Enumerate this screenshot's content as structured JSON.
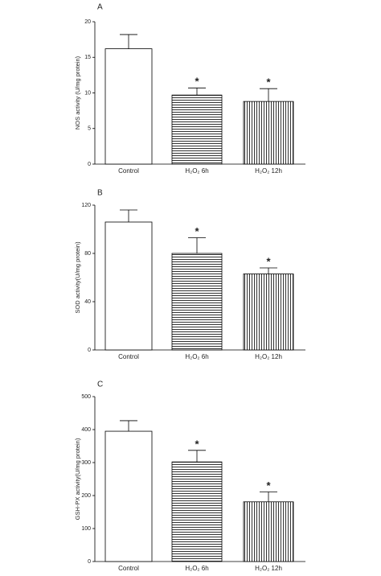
{
  "chart_data": [
    {
      "type": "bar",
      "panel_label": "A",
      "ylabel": "NOS activity (U/mg protein)",
      "categories": [
        "Control",
        "H₂O₂ 6h",
        "H₂O₂ 12h"
      ],
      "values": [
        16.2,
        9.7,
        8.8
      ],
      "errors": [
        2.0,
        1.0,
        1.8
      ],
      "significance": [
        null,
        "*",
        "*"
      ],
      "patterns": [
        "none",
        "horizontal",
        "vertical"
      ],
      "color": "#000000",
      "ylim": [
        0,
        20
      ],
      "yticks": [
        0,
        5,
        10,
        15,
        20
      ]
    },
    {
      "type": "bar",
      "panel_label": "B",
      "ylabel": "SOD activity(U/mg protein)",
      "categories": [
        "Control",
        "H₂O₂ 6h",
        "H₂O₂ 12h"
      ],
      "values": [
        106,
        80,
        63
      ],
      "errors": [
        10,
        13,
        5
      ],
      "significance": [
        null,
        "*",
        "*"
      ],
      "patterns": [
        "none",
        "horizontal",
        "vertical"
      ],
      "color": "#000000",
      "ylim": [
        0,
        120
      ],
      "yticks": [
        0,
        40,
        80,
        120
      ]
    },
    {
      "type": "bar",
      "panel_label": "C",
      "ylabel": "GSH-PX activity(U/mg protein)",
      "categories": [
        "Control",
        "H₂O₂ 6h",
        "H₂O₂ 12h"
      ],
      "values": [
        395,
        302,
        181
      ],
      "errors": [
        32,
        35,
        30
      ],
      "significance": [
        null,
        "*",
        "*"
      ],
      "patterns": [
        "none",
        "horizontal",
        "vertical"
      ],
      "color": "#000000",
      "ylim": [
        0,
        500
      ],
      "yticks": [
        0,
        100,
        200,
        300,
        400,
        500
      ]
    }
  ]
}
